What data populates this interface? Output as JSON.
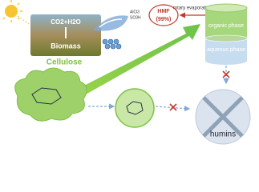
{
  "sky": {
    "reactants": "CO2+H2O",
    "product": "Biomass",
    "caption": "Cellulose"
  },
  "catalyst": {
    "items": [
      "AlCl3",
      "SO3H"
    ]
  },
  "product": {
    "name": "HMF",
    "yield": "(99%)"
  },
  "separation": {
    "step": "rotary evaporation",
    "top_phase": "organic phase",
    "bottom_phase": "aqueous phase"
  },
  "byproduct": {
    "name": "humins"
  }
}
